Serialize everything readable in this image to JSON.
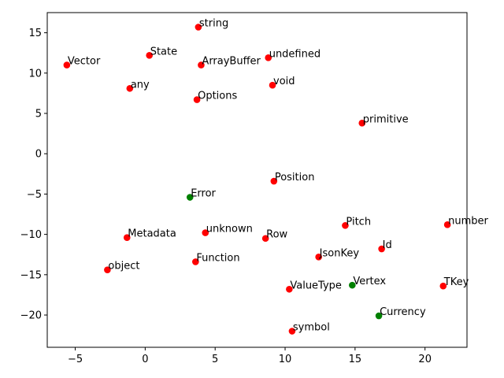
{
  "chart_data": {
    "type": "scatter",
    "title": "",
    "xlabel": "",
    "ylabel": "",
    "xlim": [
      -7,
      23
    ],
    "ylim": [
      -24,
      17.5
    ],
    "xticks": [
      -5,
      0,
      5,
      10,
      15,
      20
    ],
    "yticks": [
      -20,
      -15,
      -10,
      -5,
      0,
      5,
      10,
      15
    ],
    "grid": false,
    "colors": {
      "red": "#ff0000",
      "green": "#008000"
    },
    "points": [
      {
        "label": "string",
        "x": 3.8,
        "y": 15.7,
        "color": "red"
      },
      {
        "label": "State",
        "x": 0.3,
        "y": 12.2,
        "color": "red"
      },
      {
        "label": "undefined",
        "x": 8.8,
        "y": 11.9,
        "color": "red"
      },
      {
        "label": "Vector",
        "x": -5.6,
        "y": 11.0,
        "color": "red"
      },
      {
        "label": "ArrayBuffer",
        "x": 4.0,
        "y": 11.0,
        "color": "red"
      },
      {
        "label": "any",
        "x": -1.1,
        "y": 8.1,
        "color": "red"
      },
      {
        "label": "void",
        "x": 9.1,
        "y": 8.5,
        "color": "red"
      },
      {
        "label": "Options",
        "x": 3.7,
        "y": 6.7,
        "color": "red"
      },
      {
        "label": "primitive",
        "x": 15.5,
        "y": 3.8,
        "color": "red"
      },
      {
        "label": "Position",
        "x": 9.2,
        "y": -3.4,
        "color": "red"
      },
      {
        "label": "Error",
        "x": 3.2,
        "y": -5.4,
        "color": "green"
      },
      {
        "label": "Pitch",
        "x": 14.3,
        "y": -8.9,
        "color": "red"
      },
      {
        "label": "number",
        "x": 21.6,
        "y": -8.8,
        "color": "red"
      },
      {
        "label": "unknown",
        "x": 4.3,
        "y": -9.8,
        "color": "red"
      },
      {
        "label": "Metadata",
        "x": -1.3,
        "y": -10.4,
        "color": "red"
      },
      {
        "label": "Row",
        "x": 8.6,
        "y": -10.5,
        "color": "red"
      },
      {
        "label": "Id",
        "x": 16.9,
        "y": -11.8,
        "color": "red"
      },
      {
        "label": "JsonKey",
        "x": 12.4,
        "y": -12.8,
        "color": "red"
      },
      {
        "label": "Function",
        "x": 3.6,
        "y": -13.4,
        "color": "red"
      },
      {
        "label": "object",
        "x": -2.7,
        "y": -14.4,
        "color": "red"
      },
      {
        "label": "Vertex",
        "x": 14.8,
        "y": -16.3,
        "color": "green"
      },
      {
        "label": "TKey",
        "x": 21.3,
        "y": -16.4,
        "color": "red"
      },
      {
        "label": "ValueType",
        "x": 10.3,
        "y": -16.8,
        "color": "red"
      },
      {
        "label": "Currency",
        "x": 16.7,
        "y": -20.1,
        "color": "green"
      },
      {
        "label": "symbol",
        "x": 10.5,
        "y": -22.0,
        "color": "red"
      }
    ]
  }
}
